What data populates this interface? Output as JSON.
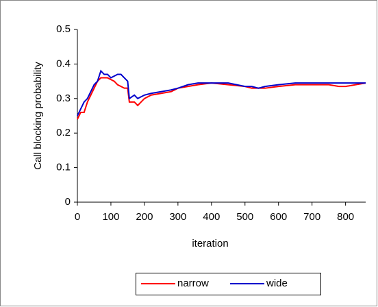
{
  "chart_data": {
    "type": "line",
    "xlabel": "iteration",
    "ylabel": "Call blocking probability",
    "x": [
      0,
      5,
      10,
      20,
      30,
      40,
      50,
      60,
      70,
      80,
      90,
      100,
      110,
      120,
      130,
      140,
      150,
      155,
      170,
      180,
      190,
      200,
      220,
      250,
      280,
      300,
      330,
      360,
      400,
      450,
      500,
      520,
      540,
      560,
      600,
      650,
      700,
      750,
      780,
      800,
      830,
      860
    ],
    "series": [
      {
        "name": "narrow",
        "color": "#ff0000",
        "values": [
          0.24,
          0.25,
          0.26,
          0.26,
          0.29,
          0.31,
          0.33,
          0.35,
          0.36,
          0.36,
          0.36,
          0.355,
          0.35,
          0.34,
          0.335,
          0.33,
          0.33,
          0.29,
          0.29,
          0.28,
          0.29,
          0.3,
          0.31,
          0.315,
          0.32,
          0.33,
          0.335,
          0.34,
          0.345,
          0.34,
          0.335,
          0.33,
          0.33,
          0.33,
          0.335,
          0.34,
          0.34,
          0.34,
          0.335,
          0.335,
          0.34,
          0.345
        ]
      },
      {
        "name": "wide",
        "color": "#0000cc",
        "values": [
          0.25,
          0.26,
          0.27,
          0.29,
          0.3,
          0.32,
          0.34,
          0.35,
          0.38,
          0.37,
          0.37,
          0.36,
          0.365,
          0.37,
          0.37,
          0.36,
          0.35,
          0.3,
          0.31,
          0.3,
          0.305,
          0.31,
          0.315,
          0.32,
          0.325,
          0.33,
          0.34,
          0.345,
          0.345,
          0.345,
          0.335,
          0.335,
          0.33,
          0.335,
          0.34,
          0.345,
          0.345,
          0.345,
          0.345,
          0.345,
          0.345,
          0.345
        ]
      }
    ],
    "xlim": [
      0,
      860
    ],
    "xticks": [
      0,
      100,
      200,
      300,
      400,
      500,
      600,
      700,
      800
    ],
    "ylim": [
      0,
      0.5
    ],
    "yticks": [
      0,
      0.1,
      0.2,
      0.3,
      0.4,
      0.5
    ],
    "grid": false,
    "legend": "bottom"
  }
}
